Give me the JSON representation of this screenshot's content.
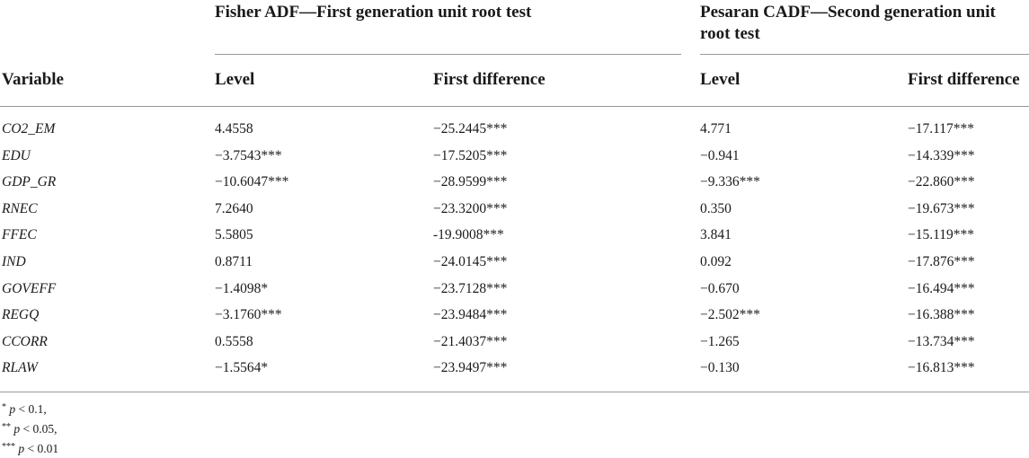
{
  "header": {
    "group1": "Fisher ADF—First generation unit root test",
    "group2": "Pesaran CADF—Second generation unit root test",
    "columns": [
      "Variable",
      "Level",
      "First difference",
      "Level",
      "First difference"
    ]
  },
  "rows": [
    {
      "variable": "CO2_EM",
      "fisher_level": "4.4558",
      "fisher_diff": "−25.2445***",
      "cadf_level": "4.771",
      "cadf_diff": "−17.117***"
    },
    {
      "variable": "EDU",
      "fisher_level": "−3.7543***",
      "fisher_diff": "−17.5205***",
      "cadf_level": "−0.941",
      "cadf_diff": "−14.339***"
    },
    {
      "variable": "GDP_GR",
      "fisher_level": "−10.6047***",
      "fisher_diff": "−28.9599***",
      "cadf_level": "−9.336***",
      "cadf_diff": "−22.860***"
    },
    {
      "variable": "RNEC",
      "fisher_level": "7.2640",
      "fisher_diff": "−23.3200***",
      "cadf_level": "0.350",
      "cadf_diff": "−19.673***"
    },
    {
      "variable": "FFEC",
      "fisher_level": "5.5805",
      "fisher_diff": "-19.9008***",
      "cadf_level": "3.841",
      "cadf_diff": "−15.119***"
    },
    {
      "variable": "IND",
      "fisher_level": "0.8711",
      "fisher_diff": "−24.0145***",
      "cadf_level": "0.092",
      "cadf_diff": "−17.876***"
    },
    {
      "variable": "GOVEFF",
      "fisher_level": "−1.4098*",
      "fisher_diff": "−23.7128***",
      "cadf_level": "−0.670",
      "cadf_diff": "−16.494***"
    },
    {
      "variable": "REGQ",
      "fisher_level": "−3.1760***",
      "fisher_diff": "−23.9484***",
      "cadf_level": "−2.502***",
      "cadf_diff": "−16.388***"
    },
    {
      "variable": "CCORR",
      "fisher_level": "0.5558",
      "fisher_diff": "−21.4037***",
      "cadf_level": "−1.265",
      "cadf_diff": "−13.734***"
    },
    {
      "variable": "RLAW",
      "fisher_level": "−1.5564*",
      "fisher_diff": "−23.9497***",
      "cadf_level": "−0.130",
      "cadf_diff": "−16.813***"
    }
  ],
  "notes": [
    {
      "stars": "*",
      "p": "p",
      "text": " < 0.1,"
    },
    {
      "stars": "**",
      "p": "p",
      "text": " < 0.05,"
    },
    {
      "stars": "***",
      "p": "p",
      "text": " < 0.01"
    }
  ]
}
